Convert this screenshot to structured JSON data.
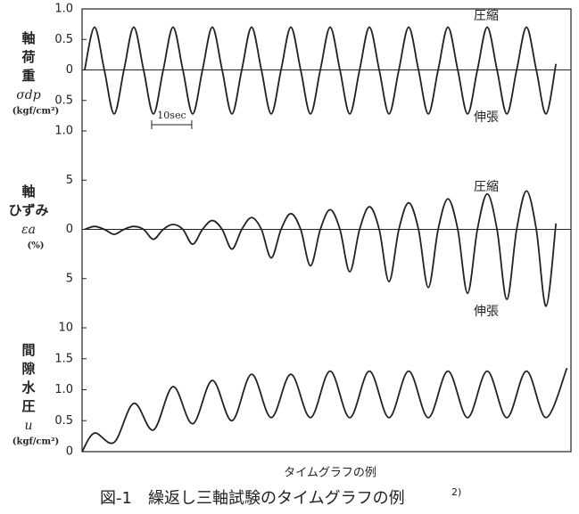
{
  "chart_data": [
    {
      "type": "line",
      "y_label": [
        "軸",
        "荷",
        "重"
      ],
      "y_symbol": "σdp",
      "y_unit": "(kgf/cm²)",
      "annotations": [
        "圧縮",
        "伸張"
      ],
      "scale_bar": {
        "label": "10sec",
        "length": 10
      },
      "zero_line": true,
      "color": "#222222",
      "xlim": [
        0,
        122
      ],
      "ylim": [
        -1,
        1
      ],
      "yticks": [
        {
          "value": 1,
          "label": "1.0"
        },
        0.5,
        0,
        {
          "value": -0.5,
          "label": "0.5"
        },
        {
          "value": -1,
          "label": "1.0"
        }
      ],
      "x": [
        0.65,
        3.1,
        5.55,
        8.0,
        10.45,
        12.9,
        15.35,
        17.8,
        20.25,
        22.7,
        25.15,
        27.6,
        30.05,
        32.5,
        34.95,
        37.4,
        39.85,
        42.3,
        44.75,
        47.2,
        49.65,
        52.1,
        54.55,
        57.0,
        59.45,
        61.9,
        64.35,
        66.8,
        69.25,
        71.7,
        74.15,
        76.6,
        79.05,
        81.5,
        83.95,
        86.4,
        88.85,
        91.3,
        93.75,
        96.2,
        98.65,
        101.1,
        103.55,
        106.0,
        108.45,
        110.9,
        113.35,
        115.8,
        118.25
      ],
      "values": [
        0,
        0.7,
        0,
        -0.72,
        0,
        0.7,
        0,
        -0.72,
        0,
        0.7,
        0,
        -0.72,
        0,
        0.7,
        0,
        -0.72,
        0,
        0.7,
        0,
        -0.72,
        0,
        0.7,
        0,
        -0.72,
        0,
        0.7,
        0,
        -0.72,
        0,
        0.7,
        0,
        -0.72,
        0,
        0.7,
        0,
        -0.72,
        0,
        0.7,
        0,
        -0.72,
        0,
        0.7,
        0,
        -0.72,
        0,
        0.7,
        0,
        -0.72,
        0.1
      ]
    },
    {
      "type": "line",
      "y_label": [
        "軸",
        "ひずみ"
      ],
      "y_symbol": "εa",
      "y_unit": "(%)",
      "annotations": [
        "圧縮",
        "伸張"
      ],
      "zero_line": true,
      "color": "#222222",
      "xlim": [
        0,
        122
      ],
      "ylim": [
        -10,
        10
      ],
      "yticks": [
        5,
        0,
        {
          "value": -5,
          "label": "5"
        },
        {
          "value": -10,
          "label": "10"
        }
      ],
      "x": [
        0.65,
        3.1,
        5.55,
        8.0,
        10.45,
        12.9,
        15.35,
        17.8,
        20.25,
        22.7,
        25.15,
        27.6,
        30.05,
        32.5,
        34.95,
        37.4,
        39.85,
        42.3,
        44.75,
        47.2,
        49.65,
        52.1,
        54.55,
        57.0,
        59.45,
        61.9,
        64.35,
        66.8,
        69.25,
        71.7,
        74.15,
        76.6,
        79.05,
        81.5,
        83.95,
        86.4,
        88.85,
        91.3,
        93.75,
        96.2,
        98.65,
        101.1,
        103.55,
        106.0,
        108.45,
        110.9,
        113.35,
        115.8,
        118.25
      ],
      "values": [
        0,
        0.3,
        0,
        -0.5,
        0,
        0.3,
        0,
        -1.0,
        0,
        0.5,
        0,
        -1.5,
        0,
        0.9,
        0,
        -2.0,
        0,
        1.2,
        0,
        -2.9,
        0,
        1.6,
        0,
        -3.7,
        0,
        2.0,
        0,
        -4.3,
        0,
        2.3,
        0,
        -5.3,
        0,
        2.7,
        0,
        -5.9,
        0,
        3.1,
        0,
        -6.5,
        0,
        3.6,
        0,
        -7.1,
        0,
        3.9,
        0,
        -7.8,
        0.6
      ]
    },
    {
      "type": "line",
      "y_label": [
        "間",
        "隙",
        "水",
        "圧"
      ],
      "y_symbol": "u",
      "y_unit": "(kgf/cm²)",
      "annotations": [],
      "zero_line": false,
      "color": "#222222",
      "xlim": [
        0,
        122
      ],
      "ylim": [
        0,
        2
      ],
      "yticks": [
        0,
        0.5,
        {
          "value": 1,
          "label": "1.0"
        },
        1.5
      ],
      "x": [
        0,
        3.1,
        8.0,
        12.9,
        17.8,
        22.7,
        27.6,
        32.5,
        37.4,
        42.3,
        47.2,
        52.1,
        57.0,
        61.9,
        66.8,
        71.7,
        76.6,
        81.5,
        86.4,
        91.3,
        96.2,
        101.1,
        106.0,
        110.9,
        115.8,
        121
      ],
      "values": [
        0,
        0.3,
        0.15,
        0.78,
        0.35,
        1.05,
        0.45,
        1.15,
        0.5,
        1.25,
        0.55,
        1.25,
        0.55,
        1.3,
        0.55,
        1.3,
        0.55,
        1.3,
        0.55,
        1.3,
        0.55,
        1.3,
        0.55,
        1.3,
        0.55,
        1.35
      ]
    }
  ],
  "x_label": "タイムグラフの例",
  "caption": "図-1　繰返し三軸試験のタイムグラフの例",
  "caption_ref": "2)"
}
